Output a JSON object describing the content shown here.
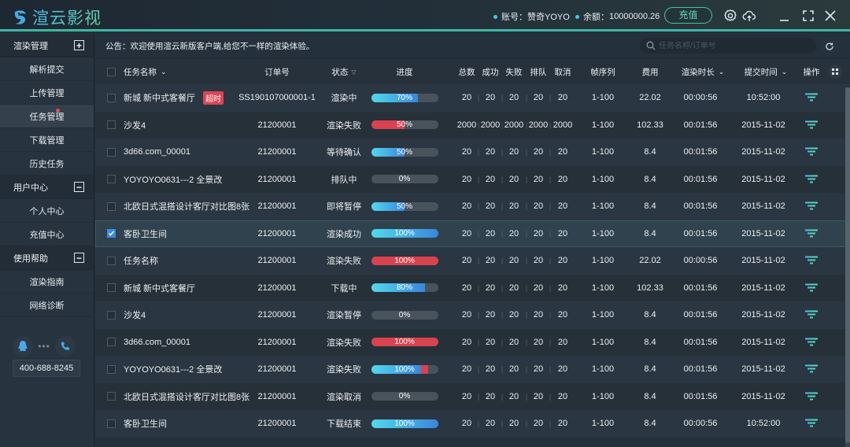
{
  "app": {
    "title": "渲云影视",
    "account_label": "账号：",
    "account_value": "赞奇YOYO",
    "balance_label": "余额：",
    "balance_value": "10000000.26",
    "recharge_button": "充值",
    "icons": [
      "gear-icon",
      "cloud-upload-icon",
      "minimize-icon",
      "maximize-icon",
      "close-icon"
    ]
  },
  "sidebar": {
    "groups": [
      {
        "label": "渲染管理",
        "toggle": "+",
        "items": [
          {
            "label": "解析提交"
          },
          {
            "label": "上传管理"
          },
          {
            "label": "任务管理",
            "active": true,
            "badge": true
          },
          {
            "label": "下载管理"
          },
          {
            "label": "历史任务"
          }
        ]
      },
      {
        "label": "用户中心",
        "toggle": "−",
        "items": [
          {
            "label": "个人中心"
          },
          {
            "label": "充值中心"
          }
        ]
      },
      {
        "label": "使用帮助",
        "toggle": "−",
        "items": [
          {
            "label": "渲染指南"
          },
          {
            "label": "网络诊断"
          }
        ]
      }
    ],
    "contact": {
      "phone": "400-688-8245",
      "icons": [
        "qq-icon",
        "phone-icon"
      ]
    }
  },
  "notice": {
    "text": "公告：欢迎使用渲云新版客户端,给您不一样的渲染体验。"
  },
  "search": {
    "placeholder": "任务名称/订单号",
    "value": ""
  },
  "table": {
    "headers": {
      "name": "任务名称",
      "order": "订单号",
      "status": "状态",
      "progress": "进度",
      "total": "总数",
      "success": "成功",
      "fail": "失败",
      "queue": "排队",
      "cancel": "取消",
      "frames": "帧序列",
      "cost": "费用",
      "duration": "渲染时长",
      "submit": "提交时间",
      "action": "操作"
    },
    "rows": [
      {
        "name": "新城 新中式客餐厅",
        "tag": "超时",
        "order": "SS190107000001-1",
        "status": "渲染中",
        "progress": 70,
        "progress_label": "70%",
        "bar": "blue",
        "total": "20",
        "success": "20",
        "fail": "20",
        "queue": "20",
        "cancel": "20",
        "frames": "1-100",
        "cost": "22.02",
        "duration": "00:00:56",
        "submit": "10:52:00",
        "checked": false
      },
      {
        "name": "沙发4",
        "tag": "",
        "order": "21200001",
        "status": "渲染失败",
        "progress": 50,
        "progress_label": "50%",
        "bar": "red",
        "total": "2000",
        "success": "2000",
        "fail": "2000",
        "queue": "2000",
        "cancel": "2000",
        "frames": "1-100",
        "cost": "102.33",
        "duration": "00:01:56",
        "submit": "2015-11-02",
        "checked": false
      },
      {
        "name": "3d66.com_00001",
        "tag": "",
        "order": "21200001",
        "status": "等待确认",
        "progress": 50,
        "progress_label": "50%",
        "bar": "blue",
        "total": "20",
        "success": "20",
        "fail": "20",
        "queue": "20",
        "cancel": "20",
        "frames": "1-100",
        "cost": "8.4",
        "duration": "00:01:56",
        "submit": "2015-11-02",
        "checked": false
      },
      {
        "name": "YOYOYO0631---2 全景改",
        "tag": "",
        "order": "21200001",
        "status": "排队中",
        "progress": 0,
        "progress_label": "0%",
        "bar": "blue",
        "total": "20",
        "success": "20",
        "fail": "20",
        "queue": "20",
        "cancel": "20",
        "frames": "1-100",
        "cost": "8.4",
        "duration": "00:01:56",
        "submit": "2015-11-02",
        "checked": false
      },
      {
        "name": "北欧日式混搭设计客厅对比图8张",
        "tag": "",
        "order": "21200001",
        "status": "即将暂停",
        "progress": 50,
        "progress_label": "50%",
        "bar": "blue",
        "total": "20",
        "success": "20",
        "fail": "20",
        "queue": "20",
        "cancel": "20",
        "frames": "1-100",
        "cost": "8.4",
        "duration": "00:01:56",
        "submit": "2015-11-02",
        "checked": false
      },
      {
        "name": "客卧卫生间",
        "tag": "",
        "order": "21200001",
        "status": "渲染成功",
        "progress": 100,
        "progress_label": "100%",
        "bar": "blue",
        "total": "20",
        "success": "20",
        "fail": "20",
        "queue": "20",
        "cancel": "20",
        "frames": "1-100",
        "cost": "8.4",
        "duration": "00:01:56",
        "submit": "2015-11-02",
        "checked": true
      },
      {
        "name": "任务名称",
        "tag": "",
        "order": "21200001",
        "status": "渲染失败",
        "progress": 100,
        "progress_label": "100%",
        "bar": "red",
        "total": "20",
        "success": "20",
        "fail": "20",
        "queue": "20",
        "cancel": "20",
        "frames": "1-100",
        "cost": "22.02",
        "duration": "00:00:56",
        "submit": "2015-11-02",
        "checked": false
      },
      {
        "name": "新城 新中式客餐厅",
        "tag": "",
        "order": "21200001",
        "status": "下载中",
        "progress": 80,
        "progress_label": "80%",
        "bar": "blue",
        "total": "20",
        "success": "20",
        "fail": "20",
        "queue": "20",
        "cancel": "20",
        "frames": "1-100",
        "cost": "102.33",
        "duration": "00:01:56",
        "submit": "2015-11-02",
        "checked": false
      },
      {
        "name": "沙发4",
        "tag": "",
        "order": "21200001",
        "status": "渲染暂停",
        "progress": 0,
        "progress_label": "0%",
        "bar": "blue",
        "total": "20",
        "success": "20",
        "fail": "20",
        "queue": "20",
        "cancel": "20",
        "frames": "1-100",
        "cost": "8.4",
        "duration": "00:01:56",
        "submit": "2015-11-02",
        "checked": false
      },
      {
        "name": "3d66.com_00001",
        "tag": "",
        "order": "21200001",
        "status": "渲染失败",
        "progress": 100,
        "progress_label": "100%",
        "bar": "red",
        "total": "20",
        "success": "20",
        "fail": "20",
        "queue": "20",
        "cancel": "20",
        "frames": "1-100",
        "cost": "8.4",
        "duration": "00:01:56",
        "submit": "2015-11-02",
        "checked": false
      },
      {
        "name": "YOYOYO0631---2 全景改",
        "tag": "",
        "order": "21200001",
        "status": "渲染失败",
        "progress": 100,
        "progress_label": "100%",
        "bar": "mixed",
        "mixed_blue": 75,
        "mixed_red": 10,
        "total": "20",
        "success": "20",
        "fail": "20",
        "queue": "20",
        "cancel": "20",
        "frames": "1-100",
        "cost": "8.4",
        "duration": "00:01:56",
        "submit": "2015-11-02",
        "checked": false
      },
      {
        "name": "北欧日式混搭设计客厅对比图8张",
        "tag": "",
        "order": "21200001",
        "status": "渲染取消",
        "progress": 0,
        "progress_label": "0%",
        "bar": "blue",
        "total": "20",
        "success": "20",
        "fail": "20",
        "queue": "20",
        "cancel": "20",
        "frames": "1-100",
        "cost": "8.4",
        "duration": "00:01:56",
        "submit": "2015-11-02",
        "checked": false
      },
      {
        "name": "客卧卫生间",
        "tag": "",
        "order": "21200001",
        "status": "下载结束",
        "progress": 100,
        "progress_label": "100%",
        "bar": "blue",
        "total": "20",
        "success": "20",
        "fail": "20",
        "queue": "20",
        "cancel": "20",
        "frames": "1-100",
        "cost": "8.4",
        "duration": "00:00:56",
        "submit": "10:52:00",
        "checked": false
      }
    ]
  },
  "colors": {
    "accent": "#3fb7a4",
    "progress_blue_start": "#52d8ec",
    "progress_blue_end": "#3a86dc",
    "error_red": "#d9424f",
    "checkbox_checked": "#3d8be0"
  }
}
